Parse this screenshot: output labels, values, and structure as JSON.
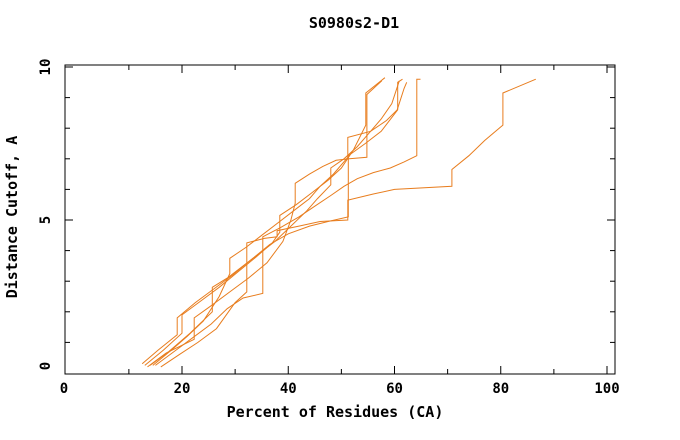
{
  "page": {
    "background": "#ffffff"
  },
  "chart_data": {
    "type": "line",
    "title": "S0980s2-D1",
    "xlabel": "Percent of Residues (CA)",
    "ylabel": "Distance Cutoff, A",
    "xlim": [
      -2,
      101.5
    ],
    "ylim": [
      0,
      10.1
    ],
    "grid": false,
    "legend": "none",
    "axis_color": "#000000",
    "line_color": "#e87d1e",
    "x_tick_labels": [
      {
        "value": 0,
        "label": "0"
      },
      {
        "value": 20,
        "label": "20"
      },
      {
        "value": 40,
        "label": "40"
      },
      {
        "value": 60,
        "label": "60"
      },
      {
        "value": 80,
        "label": "80"
      },
      {
        "value": 100,
        "label": "100"
      }
    ],
    "x_major_ticks": [
      20,
      40,
      60,
      80,
      100
    ],
    "x_minor_ticks": [
      10,
      30,
      50,
      70,
      90
    ],
    "y_tick_labels": [
      {
        "value": 0,
        "label": "0"
      },
      {
        "value": 5,
        "label": "5"
      },
      {
        "value": 10,
        "label": "10"
      }
    ],
    "y_major_ticks": [
      5,
      10
    ],
    "y_minor_ticks": [
      1,
      2,
      3,
      4,
      6,
      7,
      8,
      9
    ],
    "series": [
      {
        "name": "line-1",
        "points": [
          [
            13,
            0.25
          ],
          [
            16.5,
            0.75
          ],
          [
            20,
            1.3
          ],
          [
            20,
            1.9
          ],
          [
            23.5,
            2.35
          ],
          [
            27,
            2.8
          ],
          [
            30.5,
            3.3
          ],
          [
            34,
            3.8
          ],
          [
            37,
            4.25
          ],
          [
            38.4,
            4.6
          ],
          [
            38.4,
            5.15
          ],
          [
            41.5,
            5.5
          ],
          [
            44.5,
            5.9
          ],
          [
            47.5,
            6.3
          ],
          [
            50,
            6.7
          ],
          [
            52.3,
            7.3
          ],
          [
            54.6,
            8.1
          ],
          [
            54.6,
            9.15
          ],
          [
            58.2,
            9.65
          ]
        ]
      },
      {
        "name": "line-2",
        "points": [
          [
            12.5,
            0.3
          ],
          [
            15.5,
            0.75
          ],
          [
            19.1,
            1.25
          ],
          [
            19.1,
            1.8
          ],
          [
            22.5,
            2.3
          ],
          [
            26,
            2.75
          ],
          [
            29.5,
            3.2
          ],
          [
            33,
            3.7
          ],
          [
            36.5,
            4.2
          ],
          [
            40,
            4.55
          ],
          [
            44,
            4.8
          ],
          [
            47.5,
            4.95
          ],
          [
            51.3,
            5.1
          ],
          [
            51.3,
            7.1
          ],
          [
            54.5,
            7.5
          ],
          [
            57.5,
            7.9
          ],
          [
            60.6,
            8.6
          ],
          [
            60.6,
            9.5
          ],
          [
            61.5,
            9.6
          ]
        ]
      },
      {
        "name": "line-3",
        "points": [
          [
            14,
            0.25
          ],
          [
            17.5,
            0.7
          ],
          [
            21.5,
            1.3
          ],
          [
            25.7,
            2.0
          ],
          [
            25.7,
            2.8
          ],
          [
            28.5,
            3.1
          ],
          [
            31.5,
            3.5
          ],
          [
            34.5,
            3.9
          ],
          [
            37.5,
            4.3
          ],
          [
            40.5,
            4.8
          ],
          [
            43.5,
            5.3
          ],
          [
            45.5,
            5.7
          ],
          [
            48,
            6.15
          ],
          [
            48,
            6.7
          ],
          [
            50.5,
            7.0
          ],
          [
            53,
            7.4
          ],
          [
            55.5,
            7.9
          ],
          [
            57.5,
            8.3
          ],
          [
            59.5,
            8.8
          ],
          [
            60.9,
            9.55
          ]
        ]
      },
      {
        "name": "line-4",
        "points": [
          [
            13.5,
            0.2
          ],
          [
            17,
            0.65
          ],
          [
            22.3,
            1.1
          ],
          [
            22.3,
            1.8
          ],
          [
            25.5,
            2.2
          ],
          [
            29,
            2.65
          ],
          [
            32.5,
            3.1
          ],
          [
            36,
            3.6
          ],
          [
            39,
            4.3
          ],
          [
            40.5,
            5.0
          ],
          [
            41.3,
            5.55
          ],
          [
            41.3,
            6.2
          ],
          [
            44,
            6.5
          ],
          [
            46.5,
            6.75
          ],
          [
            49,
            6.95
          ],
          [
            51.5,
            7.0
          ],
          [
            54.8,
            7.05
          ],
          [
            54.8,
            9.1
          ],
          [
            57.6,
            9.55
          ]
        ]
      },
      {
        "name": "line-5",
        "points": [
          [
            14.5,
            0.25
          ],
          [
            18,
            0.75
          ],
          [
            21,
            1.2
          ],
          [
            24,
            1.7
          ],
          [
            27,
            2.5
          ],
          [
            29,
            3.25
          ],
          [
            29,
            3.75
          ],
          [
            32,
            4.1
          ],
          [
            35,
            4.5
          ],
          [
            38,
            4.9
          ],
          [
            41,
            5.3
          ],
          [
            44,
            5.7
          ],
          [
            46,
            6.1
          ],
          [
            48.5,
            6.5
          ],
          [
            51.2,
            7.05
          ],
          [
            51.2,
            7.7
          ],
          [
            55.5,
            7.9
          ],
          [
            58.5,
            8.25
          ],
          [
            60.5,
            8.6
          ],
          [
            61.8,
            9.3
          ],
          [
            62.3,
            9.5
          ]
        ]
      },
      {
        "name": "line-6",
        "points": [
          [
            15,
            0.25
          ],
          [
            18.5,
            0.7
          ],
          [
            22,
            1.15
          ],
          [
            25.5,
            1.6
          ],
          [
            28.5,
            2.1
          ],
          [
            31.5,
            2.45
          ],
          [
            35.2,
            2.6
          ],
          [
            35.2,
            4.45
          ],
          [
            38.5,
            4.75
          ],
          [
            42,
            5.1
          ],
          [
            45,
            5.45
          ],
          [
            48,
            5.8
          ],
          [
            50.5,
            6.1
          ],
          [
            53,
            6.35
          ],
          [
            56,
            6.55
          ],
          [
            59.2,
            6.7
          ],
          [
            61.8,
            6.9
          ],
          [
            64.2,
            7.1
          ],
          [
            64.2,
            9.6
          ],
          [
            64.9,
            9.6
          ]
        ]
      },
      {
        "name": "line-7",
        "points": [
          [
            16,
            0.2
          ],
          [
            19.5,
            0.6
          ],
          [
            23,
            1.0
          ],
          [
            26.5,
            1.45
          ],
          [
            30,
            2.3
          ],
          [
            32.2,
            2.65
          ],
          [
            32.2,
            4.25
          ],
          [
            35.5,
            4.4
          ],
          [
            37.9,
            4.45
          ],
          [
            37.9,
            4.65
          ],
          [
            42,
            4.8
          ],
          [
            46,
            4.95
          ],
          [
            51.2,
            5.0
          ],
          [
            51.2,
            5.65
          ],
          [
            56,
            5.85
          ],
          [
            60,
            6.0
          ],
          [
            70.8,
            6.1
          ],
          [
            70.8,
            6.65
          ],
          [
            74,
            7.1
          ],
          [
            77,
            7.6
          ],
          [
            80.4,
            8.1
          ],
          [
            80.4,
            9.15
          ],
          [
            86.6,
            9.6
          ]
        ]
      }
    ]
  }
}
